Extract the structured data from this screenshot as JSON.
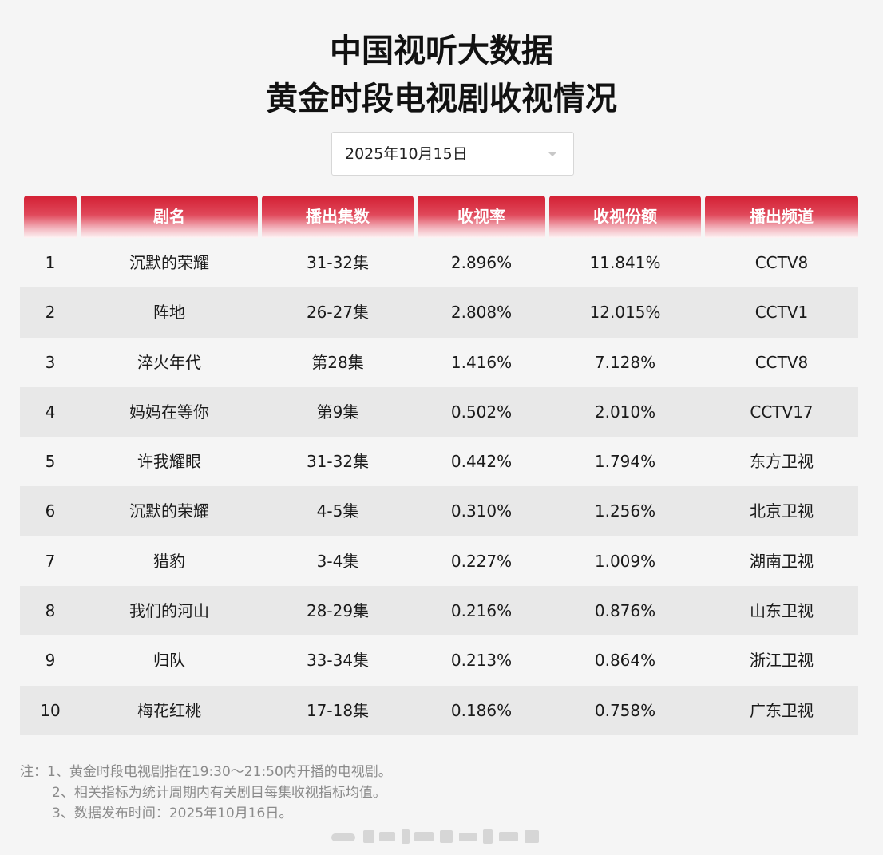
{
  "title": {
    "line1": "中国视听大数据",
    "line2": "黄金时段电视剧收视情况"
  },
  "date_select": {
    "value": "2025年10月15日"
  },
  "table": {
    "headers": [
      "",
      "剧名",
      "播出集数",
      "收视率",
      "收视份额",
      "播出频道"
    ],
    "rows": [
      {
        "rank": "1",
        "name": "沉默的荣耀",
        "episodes": "31-32集",
        "rating": "2.896%",
        "share": "11.841%",
        "channel": "CCTV8"
      },
      {
        "rank": "2",
        "name": "阵地",
        "episodes": "26-27集",
        "rating": "2.808%",
        "share": "12.015%",
        "channel": "CCTV1"
      },
      {
        "rank": "3",
        "name": "淬火年代",
        "episodes": "第28集",
        "rating": "1.416%",
        "share": "7.128%",
        "channel": "CCTV8"
      },
      {
        "rank": "4",
        "name": "妈妈在等你",
        "episodes": "第9集",
        "rating": "0.502%",
        "share": "2.010%",
        "channel": "CCTV17"
      },
      {
        "rank": "5",
        "name": "许我耀眼",
        "episodes": "31-32集",
        "rating": "0.442%",
        "share": "1.794%",
        "channel": "东方卫视"
      },
      {
        "rank": "6",
        "name": "沉默的荣耀",
        "episodes": "4-5集",
        "rating": "0.310%",
        "share": "1.256%",
        "channel": "北京卫视"
      },
      {
        "rank": "7",
        "name": "猎豹",
        "episodes": "3-4集",
        "rating": "0.227%",
        "share": "1.009%",
        "channel": "湖南卫视"
      },
      {
        "rank": "8",
        "name": "我们的河山",
        "episodes": "28-29集",
        "rating": "0.216%",
        "share": "0.876%",
        "channel": "山东卫视"
      },
      {
        "rank": "9",
        "name": "归队",
        "episodes": "33-34集",
        "rating": "0.213%",
        "share": "0.864%",
        "channel": "浙江卫视"
      },
      {
        "rank": "10",
        "name": "梅花红桃",
        "episodes": "17-18集",
        "rating": "0.186%",
        "share": "0.758%",
        "channel": "广东卫视"
      }
    ]
  },
  "notes": [
    "注：1、黄金时段电视剧指在19:30～21:50内开播的电视剧。",
    "2、相关指标为统计周期内有关剧目每集收视指标均值。",
    "3、数据发布时间：2025年10月16日。"
  ],
  "colors": {
    "header_red": "#d31f33",
    "alt_row": "#e8e8e8",
    "background": "#f5f5f5",
    "note_gray": "#8a8a8a"
  },
  "icons": {
    "dropdown": "caret-down-icon"
  }
}
